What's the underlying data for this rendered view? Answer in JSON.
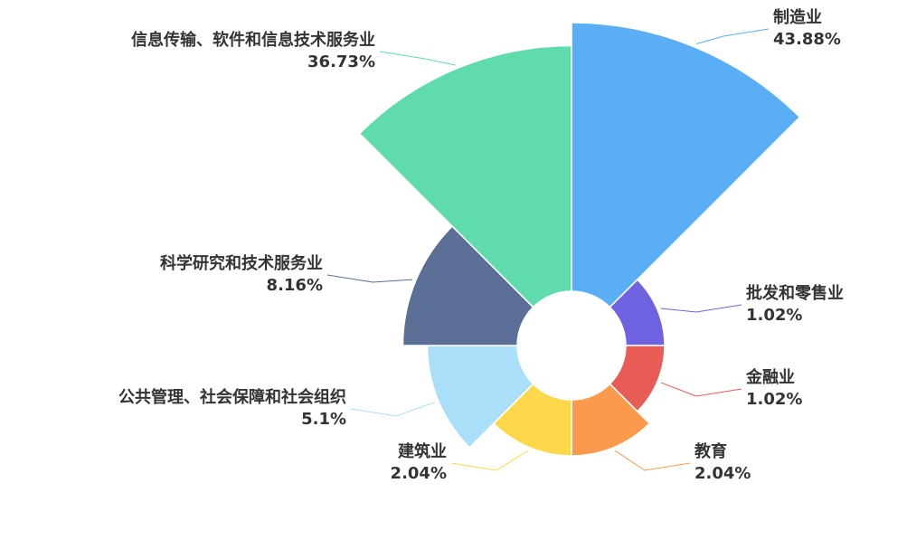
{
  "chart_data": {
    "type": "pie",
    "rose": true,
    "categories": [
      "制造业",
      "批发和零售业",
      "金融业",
      "教育",
      "建筑业",
      "公共管理、社会保障和社会组织",
      "科学研究和技术服务业",
      "信息传输、软件和信息技术服务业"
    ],
    "values": [
      43.88,
      1.02,
      1.02,
      2.04,
      2.04,
      5.1,
      8.16,
      36.73
    ],
    "value_labels": [
      "43.88%",
      "1.02%",
      "1.02%",
      "2.04%",
      "2.04%",
      "5.1%",
      "8.16%",
      "36.73%"
    ],
    "colors": [
      "#5aaef5",
      "#6e62e0",
      "#e85c55",
      "#fb9a4c",
      "#fdd84b",
      "#a9dff8",
      "#5a6e96",
      "#60dbac"
    ]
  }
}
